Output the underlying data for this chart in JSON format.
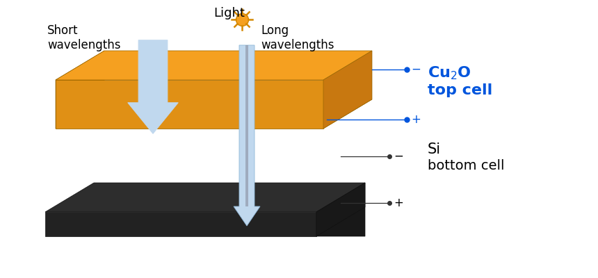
{
  "bg_color": "#ffffff",
  "orange_face": "#F5A020",
  "orange_front": "#E09015",
  "orange_side": "#C87810",
  "orange_bottom": "#B06808",
  "black_top": "#2d2d2d",
  "black_front": "#222222",
  "black_side": "#181818",
  "arrow_color": "#C0D8EE",
  "arrow_edge": "#90B8D8",
  "blue_label": "#0055DD",
  "sun_color": "#F5A020",
  "sun_ray_color": "#D48800",
  "line_color_blue": "#0055DD",
  "line_color_black": "#333333",
  "dot_color_blue": "#0055DD",
  "dot_color_black": "#333333",
  "label_short": "Short\nwavelengths",
  "label_long": "Long\nwavelengths",
  "label_light": "Light",
  "cu2o_line1": "Cu",
  "cu2o_line2": "top cell",
  "si_line1": "Si",
  "si_line2": "bottom cell",
  "minus_blue": "−",
  "plus_blue": "+",
  "minus_black": "−",
  "plus_black": "+"
}
